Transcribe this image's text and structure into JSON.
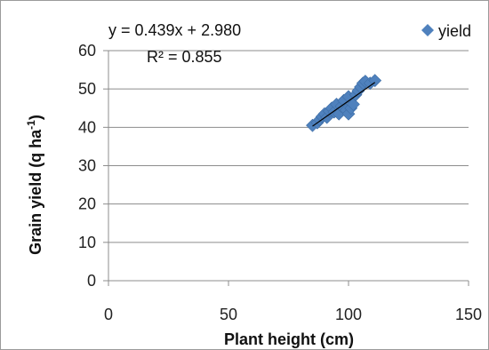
{
  "chart_data": {
    "type": "scatter",
    "title": "",
    "xlabel": "Plant height (cm)",
    "ylabel_main": "Grain yield (q ha",
    "ylabel_sup": "-1",
    "ylabel_end": ")",
    "xlim": [
      0,
      150
    ],
    "ylim": [
      0,
      60
    ],
    "xticks": [
      0,
      50,
      100,
      150
    ],
    "yticks": [
      0,
      10,
      20,
      30,
      40,
      50,
      60
    ],
    "grid": "horizontal",
    "legend_position": "top-right",
    "series": [
      {
        "name": "yield",
        "color": "#4f81bd",
        "marker": "diamond",
        "points": [
          [
            85,
            40.5
          ],
          [
            87,
            41.2
          ],
          [
            88,
            42.0
          ],
          [
            89,
            42.8
          ],
          [
            90,
            43.5
          ],
          [
            91,
            42.6
          ],
          [
            92,
            44.2
          ],
          [
            93,
            45.0
          ],
          [
            94,
            44.0
          ],
          [
            95,
            46.0
          ],
          [
            96,
            43.5
          ],
          [
            97,
            45.5
          ],
          [
            98,
            47.0
          ],
          [
            99,
            44.5
          ],
          [
            100,
            43.5
          ],
          [
            100,
            48.0
          ],
          [
            101,
            45.0
          ],
          [
            102,
            46.0
          ],
          [
            103,
            48.5
          ],
          [
            104,
            49.5
          ],
          [
            105,
            50.5
          ],
          [
            106,
            51.5
          ],
          [
            107,
            52.0
          ],
          [
            109,
            51.5
          ],
          [
            111,
            52.2
          ]
        ]
      }
    ],
    "trendline": {
      "slope": 0.439,
      "intercept": 2.98,
      "x_range": [
        85,
        111
      ],
      "color": "#000000",
      "equation_text": "y = 0.439x + 2.980",
      "r2_text": "R² = 0.855"
    }
  }
}
